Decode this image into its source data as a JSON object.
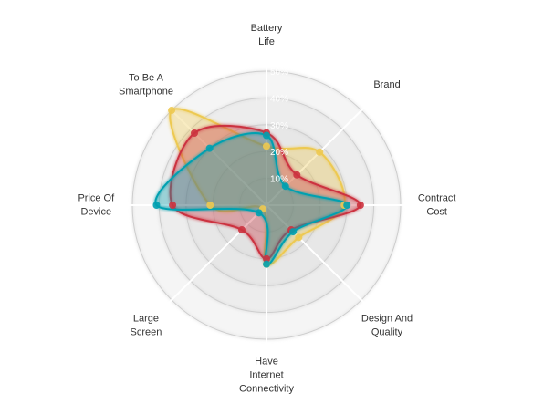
{
  "chart_data": {
    "type": "radar",
    "axes": [
      [
        "Battery",
        "Life"
      ],
      [
        "Brand"
      ],
      [
        "Contract",
        "Cost"
      ],
      [
        "Design And",
        "Quality"
      ],
      [
        "Have",
        "Internet",
        "Connectivity"
      ],
      [
        "Large",
        "Screen"
      ],
      [
        "Price Of",
        "Device"
      ],
      [
        "To Be A",
        "Smartphone"
      ]
    ],
    "ticks": [
      "10%",
      "20%",
      "30%",
      "40%",
      "50%"
    ],
    "tick_values": [
      10,
      20,
      30,
      40,
      50
    ],
    "rmax": 50,
    "series": [
      {
        "color": "#EDC951",
        "values": [
          22,
          28,
          29,
          17,
          22,
          2,
          21,
          50
        ]
      },
      {
        "color": "#CC333F",
        "values": [
          27,
          16,
          35,
          13,
          20,
          13,
          35,
          38
        ]
      },
      {
        "color": "#00A0B0",
        "values": [
          26,
          10,
          30,
          14,
          22,
          4,
          41,
          30
        ]
      }
    ],
    "grid": true
  }
}
